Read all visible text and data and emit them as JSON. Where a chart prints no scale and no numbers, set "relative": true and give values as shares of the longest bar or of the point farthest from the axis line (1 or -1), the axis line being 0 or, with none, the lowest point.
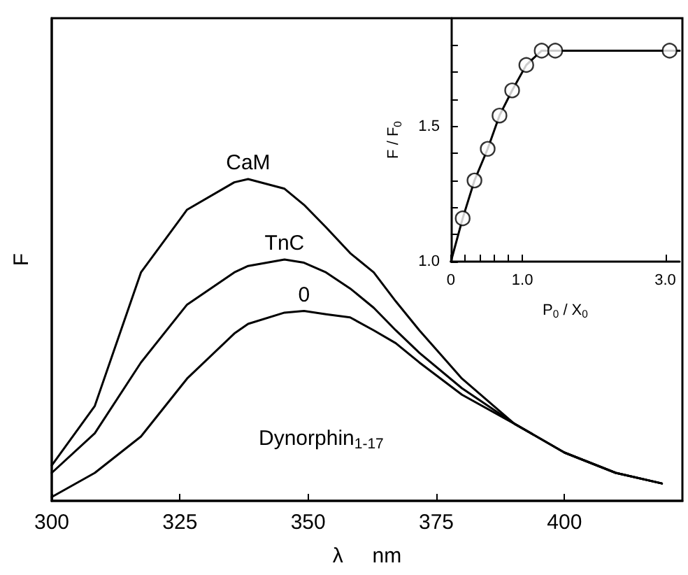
{
  "chart_data": [
    {
      "type": "line",
      "xlabel": "λ     nm",
      "ylabel": "F",
      "relative": true,
      "xlim": [
        300,
        423
      ],
      "xticks": [
        300,
        325,
        350,
        375,
        400
      ],
      "grid": false,
      "legend": false,
      "marker": "none",
      "line_style": "solid",
      "annotations": [
        "Dynorphin$_{1-17}$"
      ],
      "x": [
        300,
        308.4,
        317.4,
        326.4,
        335.6,
        338.3,
        345.4,
        349.2,
        353.5,
        358.2,
        362.8,
        367.1,
        371.7,
        380,
        390.2,
        400,
        410,
        419
      ],
      "series": [
        {
          "name": "CaM",
          "color": "#000000",
          "values": [
            0.11,
            0.295,
            0.71,
            0.905,
            0.99,
            1.0,
            0.97,
            0.92,
            0.85,
            0.77,
            0.71,
            0.62,
            0.53,
            0.38,
            0.24,
            0.15,
            0.087,
            0.054
          ]
        },
        {
          "name": "TnC",
          "color": "#000000",
          "values": [
            0.087,
            0.21,
            0.43,
            0.61,
            0.71,
            0.73,
            0.75,
            0.74,
            0.71,
            0.66,
            0.6,
            0.53,
            0.46,
            0.35,
            0.24,
            0.15,
            0.087,
            0.054
          ]
        },
        {
          "name": "0",
          "color": "#000000",
          "values": [
            0.012,
            0.087,
            0.2,
            0.38,
            0.52,
            0.55,
            0.585,
            0.59,
            0.58,
            0.57,
            0.53,
            0.49,
            0.43,
            0.33,
            0.24,
            0.15,
            0.087,
            0.054
          ]
        }
      ]
    },
    {
      "type": "scatter",
      "xlabel": "P$_{0}$ / X$_{0}$",
      "ylabel": "F / F$_{0}$",
      "xlim": [
        0,
        3.2
      ],
      "ylim": [
        1.0,
        1.9
      ],
      "xticks": [
        {
          "value": 0,
          "label": "0"
        },
        {
          "value": 0.2,
          "label": null
        },
        {
          "value": 0.4,
          "label": null
        },
        {
          "value": 0.6,
          "label": null
        },
        {
          "value": 0.8,
          "label": null
        },
        {
          "value": 1.0,
          "label": "1.0"
        },
        {
          "value": 3.0,
          "label": "3.0"
        }
      ],
      "yticks": [
        {
          "value": 1.0,
          "label": "1.0"
        },
        {
          "value": 1.1,
          "label": null
        },
        {
          "value": 1.2,
          "label": null
        },
        {
          "value": 1.3,
          "label": null
        },
        {
          "value": 1.4,
          "label": null
        },
        {
          "value": 1.5,
          "label": "1.5"
        },
        {
          "value": 1.6,
          "label": null
        },
        {
          "value": 1.7,
          "label": null
        },
        {
          "value": 1.8,
          "label": null
        }
      ],
      "grid": false,
      "legend": false,
      "series": [
        {
          "type": "line",
          "marker": "none",
          "color": "#000000",
          "x": [
            0,
            0.165,
            0.33,
            0.515,
            0.68,
            0.857,
            1.055,
            1.27,
            1.46,
            3.06,
            3.2
          ],
          "values": [
            1.0,
            1.16,
            1.3,
            1.417,
            1.54,
            1.633,
            1.727,
            1.78,
            1.78,
            1.78,
            1.78
          ]
        },
        {
          "type": "scatter",
          "marker": "circle",
          "color": "#000000",
          "x": [
            0.165,
            0.33,
            0.515,
            0.68,
            0.857,
            1.055,
            1.27,
            1.46,
            3.06
          ],
          "values": [
            1.16,
            1.3,
            1.417,
            1.54,
            1.633,
            1.727,
            1.78,
            1.78,
            1.78
          ]
        }
      ]
    }
  ]
}
